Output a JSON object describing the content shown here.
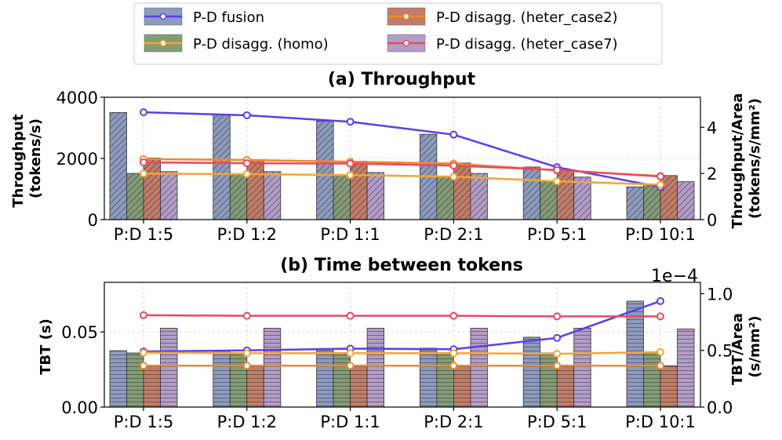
{
  "legend": [
    {
      "label": "P-D fusion",
      "bar_color": "#8d9bbd",
      "line_color": "#5b3fe8"
    },
    {
      "label": "P-D disagg. (homo)",
      "bar_color": "#859b77",
      "line_color": "#f4a434"
    },
    {
      "label": "P-D disagg. (heter_case2)",
      "bar_color": "#c17d6a",
      "line_color": "#ef8a2c"
    },
    {
      "label": "P-D disagg. (heter_case7)",
      "bar_color": "#b29dc8",
      "line_color": "#e64a60"
    }
  ],
  "chart_data": [
    {
      "type": "bar+line",
      "title": "(a) Throughput",
      "categories": [
        "P:D 1:5",
        "P:D 1:2",
        "P:D 1:1",
        "P:D 2:1",
        "P:D 5:1",
        "P:D 10:1"
      ],
      "ylabel": "Throughput\n(tokens/s)",
      "ylim": [
        0,
        4000
      ],
      "yticks": [
        "0",
        "2000",
        "4000"
      ],
      "y2label": "Throughput/Area\n(tokens/s/mm²)",
      "y2lim": [
        0,
        5.3
      ],
      "y2ticks": [
        "0",
        "2",
        "4"
      ],
      "bar_hatch": "diagonal",
      "bar_series": [
        {
          "name": "P-D fusion",
          "values": [
            3500,
            3430,
            3220,
            2790,
            1720,
            1070
          ]
        },
        {
          "name": "P-D disagg. (homo)",
          "values": [
            1510,
            1490,
            1470,
            1410,
            1260,
            1140
          ]
        },
        {
          "name": "P-D disagg. (heter_case2)",
          "values": [
            2010,
            1960,
            1910,
            1850,
            1620,
            1440
          ]
        },
        {
          "name": "P-D disagg. (heter_case7)",
          "values": [
            1570,
            1570,
            1540,
            1510,
            1390,
            1240
          ]
        }
      ],
      "line_series": [
        {
          "name": "P-D fusion",
          "values": [
            4.65,
            4.52,
            4.24,
            3.68,
            2.27,
            1.41
          ]
        },
        {
          "name": "P-D disagg. (homo)",
          "values": [
            1.99,
            1.97,
            1.93,
            1.86,
            1.66,
            1.51
          ]
        },
        {
          "name": "P-D disagg. (heter_case2)",
          "values": [
            2.62,
            2.58,
            2.51,
            2.43,
            2.13,
            1.89
          ]
        },
        {
          "name": "P-D disagg. (heter_case7)",
          "values": [
            2.48,
            2.44,
            2.43,
            2.34,
            2.15,
            1.87
          ]
        }
      ]
    },
    {
      "type": "bar+line",
      "title": "(b) Time between tokens",
      "categories": [
        "P:D 1:5",
        "P:D 1:2",
        "P:D 1:1",
        "P:D 2:1",
        "P:D 5:1",
        "P:D 10:1"
      ],
      "ylabel": "TBT (s)",
      "ylim": [
        0,
        0.083
      ],
      "yticks": [
        "0.00",
        "0.05"
      ],
      "y2label": "TBT/Area\n(s/mm²)",
      "y2lim": [
        0,
        1.1
      ],
      "y2ticks": [
        "0.0",
        "0.5",
        "1.0"
      ],
      "y2_offset_text": "1e−4",
      "bar_hatch": "horizontal",
      "bar_series": [
        {
          "name": "P-D fusion",
          "values": [
            0.0375,
            0.0378,
            0.039,
            0.0392,
            0.0465,
            0.0705
          ]
        },
        {
          "name": "P-D disagg. (homo)",
          "values": [
            0.036,
            0.036,
            0.0362,
            0.0362,
            0.036,
            0.0365
          ]
        },
        {
          "name": "P-D disagg. (heter_case2)",
          "values": [
            0.0275,
            0.0275,
            0.0275,
            0.0275,
            0.0275,
            0.0275
          ]
        },
        {
          "name": "P-D disagg. (heter_case7)",
          "values": [
            0.0525,
            0.0525,
            0.0525,
            0.0525,
            0.0525,
            0.052
          ]
        }
      ],
      "line_series": [
        {
          "name": "P-D fusion",
          "values": [
            0.49,
            0.5,
            0.515,
            0.51,
            0.61,
            0.935
          ]
        },
        {
          "name": "P-D disagg. (homo)",
          "values": [
            0.48,
            0.475,
            0.475,
            0.475,
            0.47,
            0.485
          ]
        },
        {
          "name": "P-D disagg. (heter_case2)",
          "values": [
            0.365,
            0.365,
            0.365,
            0.365,
            0.365,
            0.365
          ]
        },
        {
          "name": "P-D disagg. (heter_case7)",
          "values": [
            0.81,
            0.805,
            0.805,
            0.805,
            0.8,
            0.8
          ]
        }
      ]
    }
  ]
}
